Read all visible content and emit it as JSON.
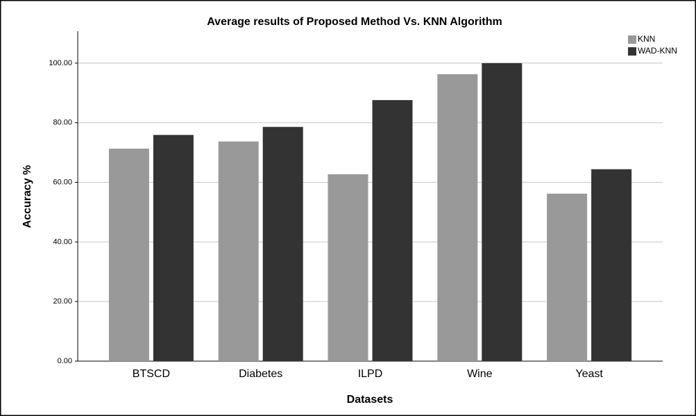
{
  "chart_data": {
    "type": "bar",
    "title": "Average results of Proposed Method Vs. KNN Algorithm",
    "x_label": "Datasets",
    "y_label": "Accuracy %",
    "categories": [
      "BTSCD",
      "Diabetes",
      "ILPD",
      "Wine",
      "Yeast"
    ],
    "series": [
      {
        "name": "KNN",
        "color": "#999999",
        "values": [
          71.3,
          73.7,
          62.7,
          96.3,
          56.2
        ]
      },
      {
        "name": "WAD-KNN",
        "color": "#333333",
        "values": [
          75.9,
          78.6,
          87.6,
          100,
          64.4
        ]
      }
    ],
    "ylim": [
      0,
      110
    ],
    "yticks": [
      {
        "value": 0,
        "label": "0.00"
      },
      {
        "value": 20,
        "label": "20.00"
      },
      {
        "value": 40,
        "label": "40.00"
      },
      {
        "value": 60,
        "label": "60.00"
      },
      {
        "value": 80,
        "label": "80.00"
      },
      {
        "value": 100,
        "label": "100.00"
      }
    ],
    "grid": true,
    "legend": "top-right"
  }
}
